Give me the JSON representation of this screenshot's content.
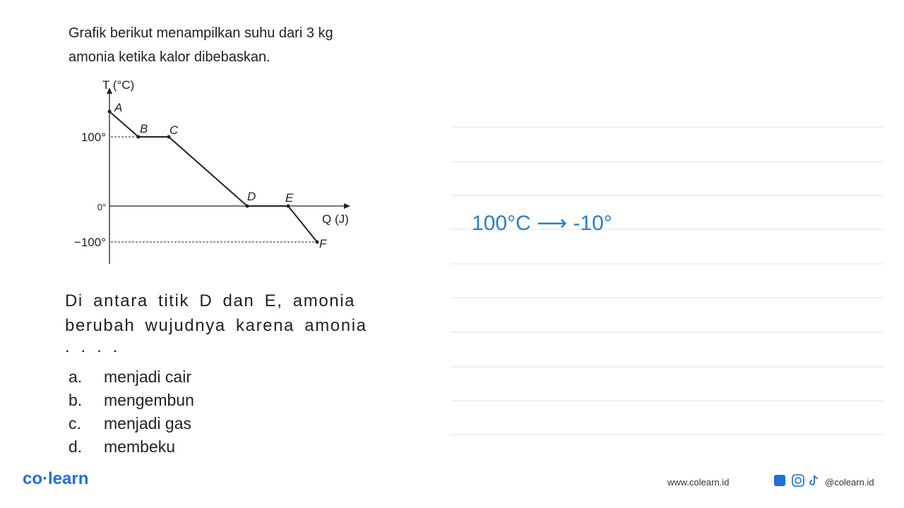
{
  "intro": [
    "Grafik berikut menampilkan suhu dari 3 kg",
    "amonia ketika kalor dibebaskan."
  ],
  "graph": {
    "y_axis_label": "T (°C)",
    "x_axis_label": "Q (J)",
    "y_labels": [
      "100°",
      "0°",
      "−100°"
    ],
    "points": [
      "A",
      "B",
      "C",
      "D",
      "E",
      "F"
    ]
  },
  "question": [
    "Di antara titik D dan E, amonia",
    "berubah wujudnya karena amonia",
    ". . . ."
  ],
  "options": [
    {
      "letter": "a.",
      "text": "menjadi cair"
    },
    {
      "letter": "b.",
      "text": "mengembun"
    },
    {
      "letter": "c.",
      "text": "menjadi gas"
    },
    {
      "letter": "d.",
      "text": "membeku"
    }
  ],
  "handwriting": "100°C ⟶ -10°",
  "footer": {
    "brand": "co·learn",
    "website": "www.colearn.id",
    "social": "@colearn.id"
  }
}
